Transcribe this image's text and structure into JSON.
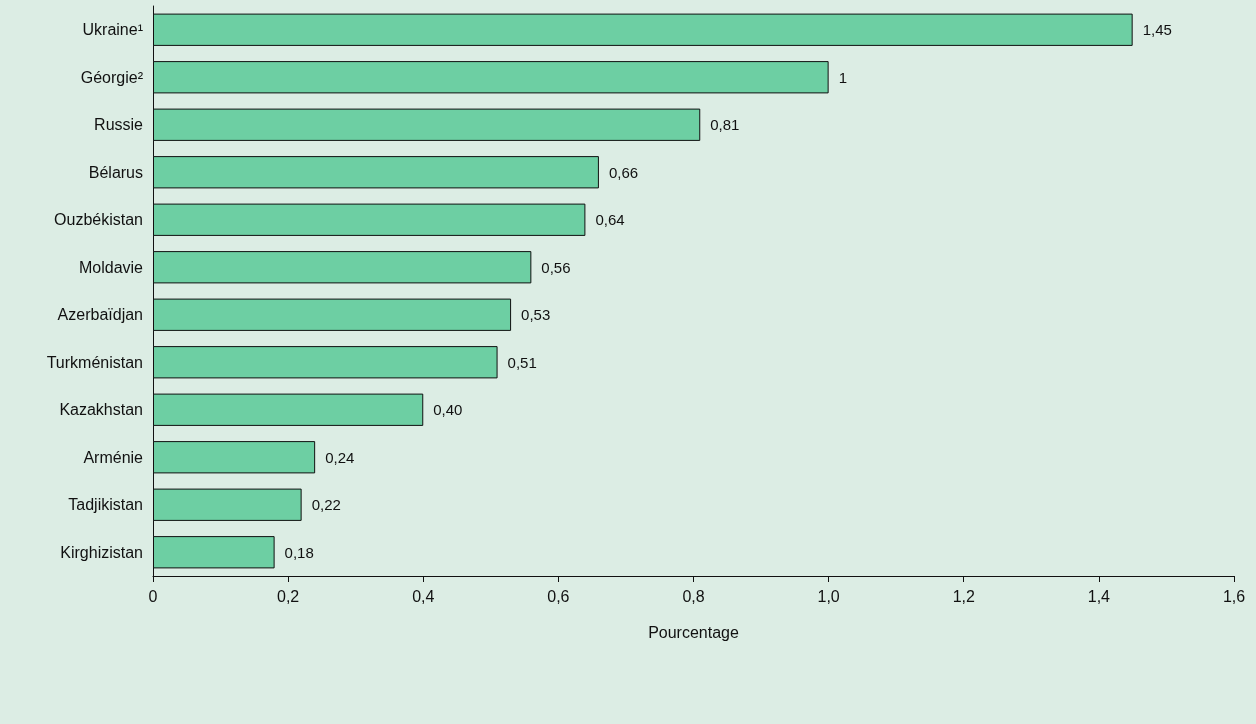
{
  "chart_data": {
    "type": "bar",
    "orientation": "horizontal",
    "xlabel": "Pourcentage",
    "categories": [
      "Ukraine¹",
      "Géorgie²",
      "Russie",
      "Bélarus",
      "Ouzbékistan",
      "Moldavie",
      "Azerbaïdjan",
      "Turkménistan",
      "Kazakhstan",
      "Arménie",
      "Tadjikistan",
      "Kirghizistan"
    ],
    "values": [
      1.45,
      1,
      0.81,
      0.66,
      0.64,
      0.56,
      0.53,
      0.51,
      0.4,
      0.24,
      0.22,
      0.18
    ],
    "value_labels": [
      "1,45",
      "1",
      "0,81",
      "0,66",
      "0,64",
      "0,56",
      "0,53",
      "0,51",
      "0,40",
      "0,24",
      "0,22",
      "0,18"
    ],
    "color": "#6dcfa3",
    "xlim": [
      0,
      1.6
    ],
    "xticks": [
      {
        "value": 0,
        "label": "0"
      },
      {
        "value": 0.2,
        "label": "0,2"
      },
      {
        "value": 0.4,
        "label": "0,4"
      },
      {
        "value": 0.6,
        "label": "0,6"
      },
      {
        "value": 0.8,
        "label": "0,8"
      },
      {
        "value": 1.0,
        "label": "1,0"
      },
      {
        "value": 1.2,
        "label": "1,2"
      },
      {
        "value": 1.4,
        "label": "1,4"
      },
      {
        "value": 1.6,
        "label": "1,6"
      }
    ],
    "grid": false
  }
}
